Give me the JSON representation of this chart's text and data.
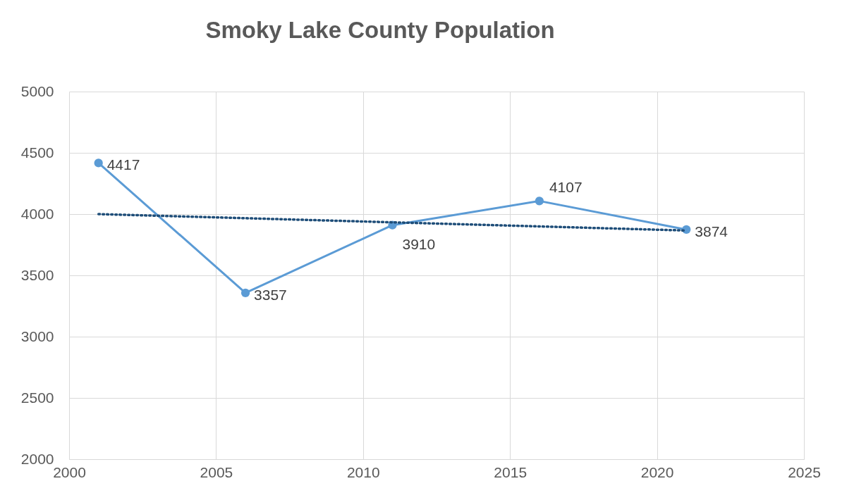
{
  "chart_data": {
    "type": "line",
    "title": "Smoky Lake County Population",
    "x": [
      2001,
      2006,
      2011,
      2016,
      2021
    ],
    "series": [
      {
        "color": "#5b9bd5",
        "values": [
          4417,
          3357,
          3910,
          4107,
          3874
        ],
        "value_labels": [
          "4417",
          "3357",
          "3910",
          "4107",
          "3874"
        ]
      },
      {
        "type": "line",
        "x": [
          2001,
          2021
        ],
        "values": [
          4000,
          3866
        ],
        "color": "#1f4e79",
        "line_style": "dotted",
        "marker": "none"
      }
    ],
    "xlim": [
      2000,
      2025
    ],
    "xticks": [
      2000,
      2005,
      2010,
      2015,
      2020,
      2025
    ],
    "ylim": [
      2000,
      5000
    ],
    "yticks": [
      2000,
      2500,
      3000,
      3500,
      4000,
      4500,
      5000
    ],
    "grid": true,
    "marker": "circle"
  }
}
